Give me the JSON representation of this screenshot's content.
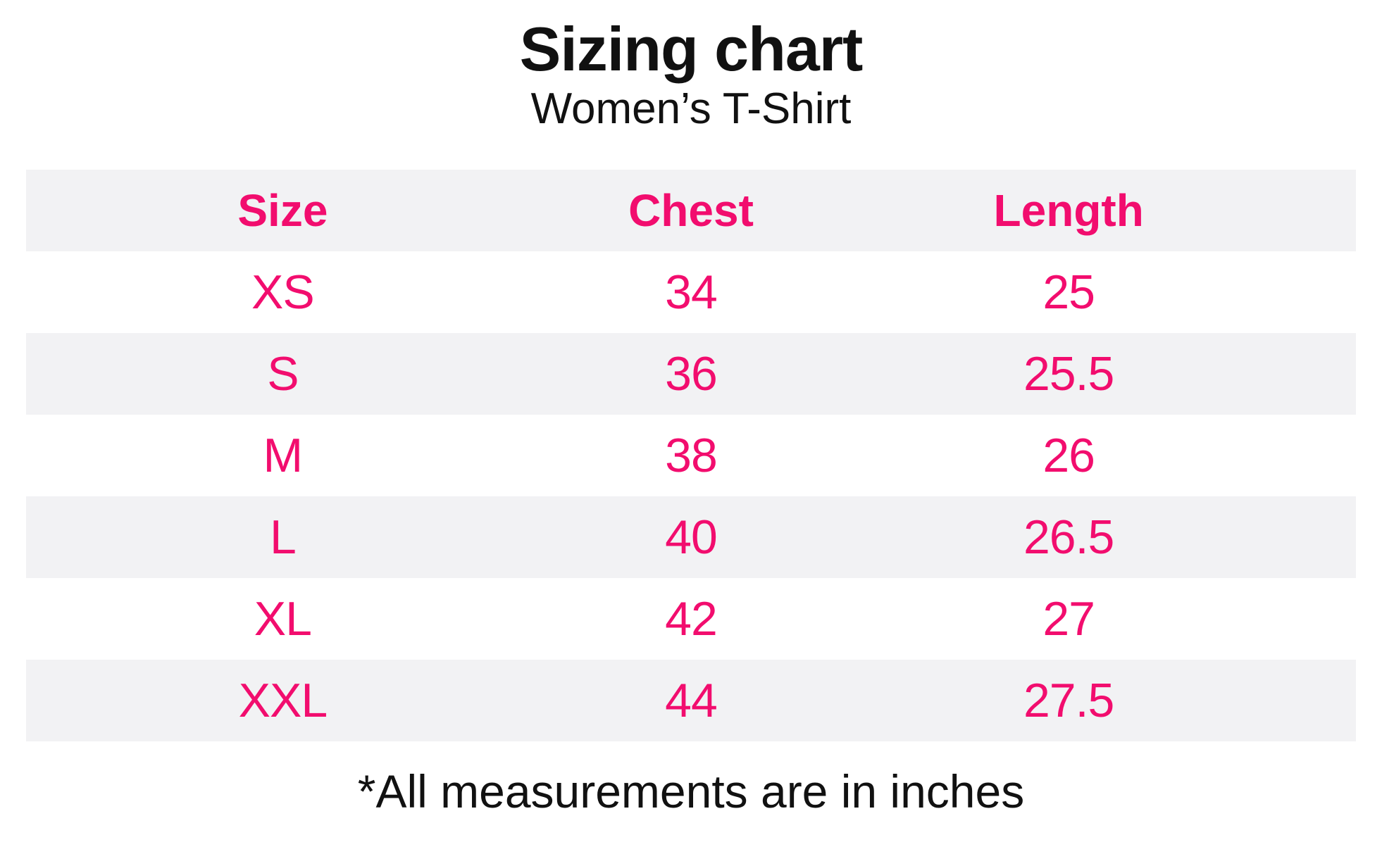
{
  "page": {
    "title": "Sizing chart",
    "subtitle": "Women’s T-Shirt",
    "footnote": "*All measurements are in inches"
  },
  "colors": {
    "accent_pink": "#f20d6e",
    "stripe_gray": "#f2f2f4",
    "text_black": "#111111",
    "background": "#ffffff"
  },
  "chart_data": {
    "type": "table",
    "title": "Sizing chart",
    "subtitle": "Women’s T-Shirt",
    "columns": [
      "Size",
      "Chest",
      "Length"
    ],
    "rows": [
      {
        "size": "XS",
        "chest": 34,
        "length": 25
      },
      {
        "size": "S",
        "chest": 36,
        "length": 25.5
      },
      {
        "size": "M",
        "chest": 38,
        "length": 26
      },
      {
        "size": "L",
        "chest": 40,
        "length": 26.5
      },
      {
        "size": "XL",
        "chest": 42,
        "length": 27
      },
      {
        "size": "XXL",
        "chest": 44,
        "length": 27.5
      }
    ],
    "units": "inches",
    "footnote": "*All measurements are in inches",
    "layout": {
      "stripe_pattern": "header and every other data row shaded",
      "column_alignment": "center"
    }
  }
}
